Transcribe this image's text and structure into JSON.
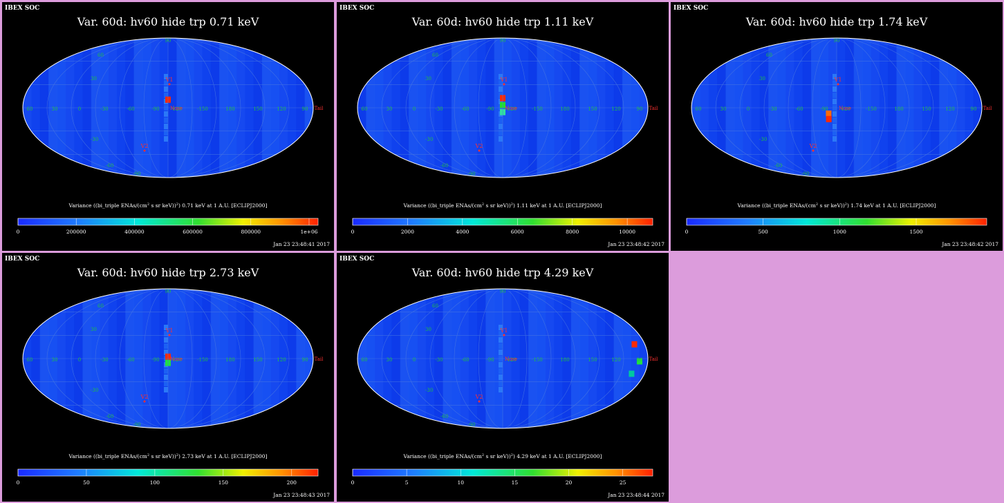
{
  "page": {
    "background": "#dc9cdc"
  },
  "labels": {
    "org": "IBEX SOC",
    "colorbar_prefix": "Variance ((bi_triple ENAs/(cm",
    "colorbar_sup": "2",
    "colorbar_mid": " s sr keV))",
    "colorbar_sup2": "2",
    "colorbar_suffix_tpl": ") {e} keV at 1 A.U. [ECLIPJ2000]",
    "markers": {
      "v1": "V1",
      "v2": "V2",
      "nose": "Nose",
      "tail": "Tail"
    },
    "grid_lat": [
      "60",
      "30",
      "-30",
      "-60"
    ],
    "grid_lon": [
      "60",
      "30",
      "0",
      "-30",
      "-60",
      "-90",
      "-120",
      "-150",
      "180",
      "150",
      "120",
      "90"
    ],
    "top_tick": "90",
    "bottom_tick": "-90"
  },
  "panels": [
    {
      "title": "Var. 60d: hv60 hide trp 0.71 keV",
      "energy": "0.71",
      "timestamp": "Jan 23 23:48:41 2017",
      "ticks": [
        "0",
        "200000",
        "400000",
        "600000",
        "800000",
        "1e+06"
      ],
      "tick_fracs": [
        0.0,
        0.194,
        0.388,
        0.582,
        0.776,
        0.97
      ]
    },
    {
      "title": "Var. 60d: hv60 hide trp 1.11 keV",
      "energy": "1.11",
      "timestamp": "Jan 23 23:48:42 2017",
      "ticks": [
        "0",
        "2000",
        "4000",
        "6000",
        "8000",
        "10000"
      ],
      "tick_fracs": [
        0.0,
        0.183,
        0.366,
        0.549,
        0.732,
        0.915
      ]
    },
    {
      "title": "Var. 60d: hv60 hide trp 1.74 keV",
      "energy": "1.74",
      "timestamp": "Jan 23 23:48:42 2017",
      "ticks": [
        "0",
        "500",
        "1000",
        "1500"
      ],
      "tick_fracs": [
        0.0,
        0.255,
        0.51,
        0.765
      ]
    },
    {
      "title": "Var. 60d: hv60 hide trp 2.73 keV",
      "energy": "2.73",
      "timestamp": "Jan 23 23:48:43 2017",
      "ticks": [
        "0",
        "50",
        "100",
        "150",
        "200"
      ],
      "tick_fracs": [
        0.0,
        0.228,
        0.456,
        0.684,
        0.912
      ]
    },
    {
      "title": "Var. 60d: hv60 hide trp 4.29 keV",
      "energy": "4.29",
      "timestamp": "Jan 23 23:48:44 2017",
      "ticks": [
        "0",
        "5",
        "10",
        "15",
        "20",
        "25"
      ],
      "tick_fracs": [
        0.0,
        0.18,
        0.36,
        0.54,
        0.72,
        0.9
      ]
    }
  ],
  "chart_data": [
    {
      "type": "heatmap",
      "title": "Var. 60d: hv60 hide trp 0.71 keV",
      "projection": "mollweide",
      "colorbar_range": [
        0,
        1030000
      ],
      "colorbar_ticks": [
        0,
        200000,
        400000,
        600000,
        800000,
        1000000
      ],
      "hotspot": "Nose"
    },
    {
      "type": "heatmap",
      "title": "Var. 60d: hv60 hide trp 1.11 keV",
      "projection": "mollweide",
      "colorbar_range": [
        0,
        10900
      ],
      "colorbar_ticks": [
        0,
        2000,
        4000,
        6000,
        8000,
        10000
      ],
      "hotspot": "Nose"
    },
    {
      "type": "heatmap",
      "title": "Var. 60d: hv60 hide trp 1.74 keV",
      "projection": "mollweide",
      "colorbar_range": [
        0,
        1960
      ],
      "colorbar_ticks": [
        0,
        500,
        1000,
        1500
      ],
      "hotspot": "Nose"
    },
    {
      "type": "heatmap",
      "title": "Var. 60d: hv60 hide trp 2.73 keV",
      "projection": "mollweide",
      "colorbar_range": [
        0,
        219
      ],
      "colorbar_ticks": [
        0,
        50,
        100,
        150,
        200
      ],
      "hotspot": "Nose"
    },
    {
      "type": "heatmap",
      "title": "Var. 60d: hv60 hide trp 4.29 keV",
      "projection": "mollweide",
      "colorbar_range": [
        0,
        27.8
      ],
      "colorbar_ticks": [
        0,
        5,
        10,
        15,
        20,
        25
      ],
      "hotspot": "Tail"
    }
  ]
}
